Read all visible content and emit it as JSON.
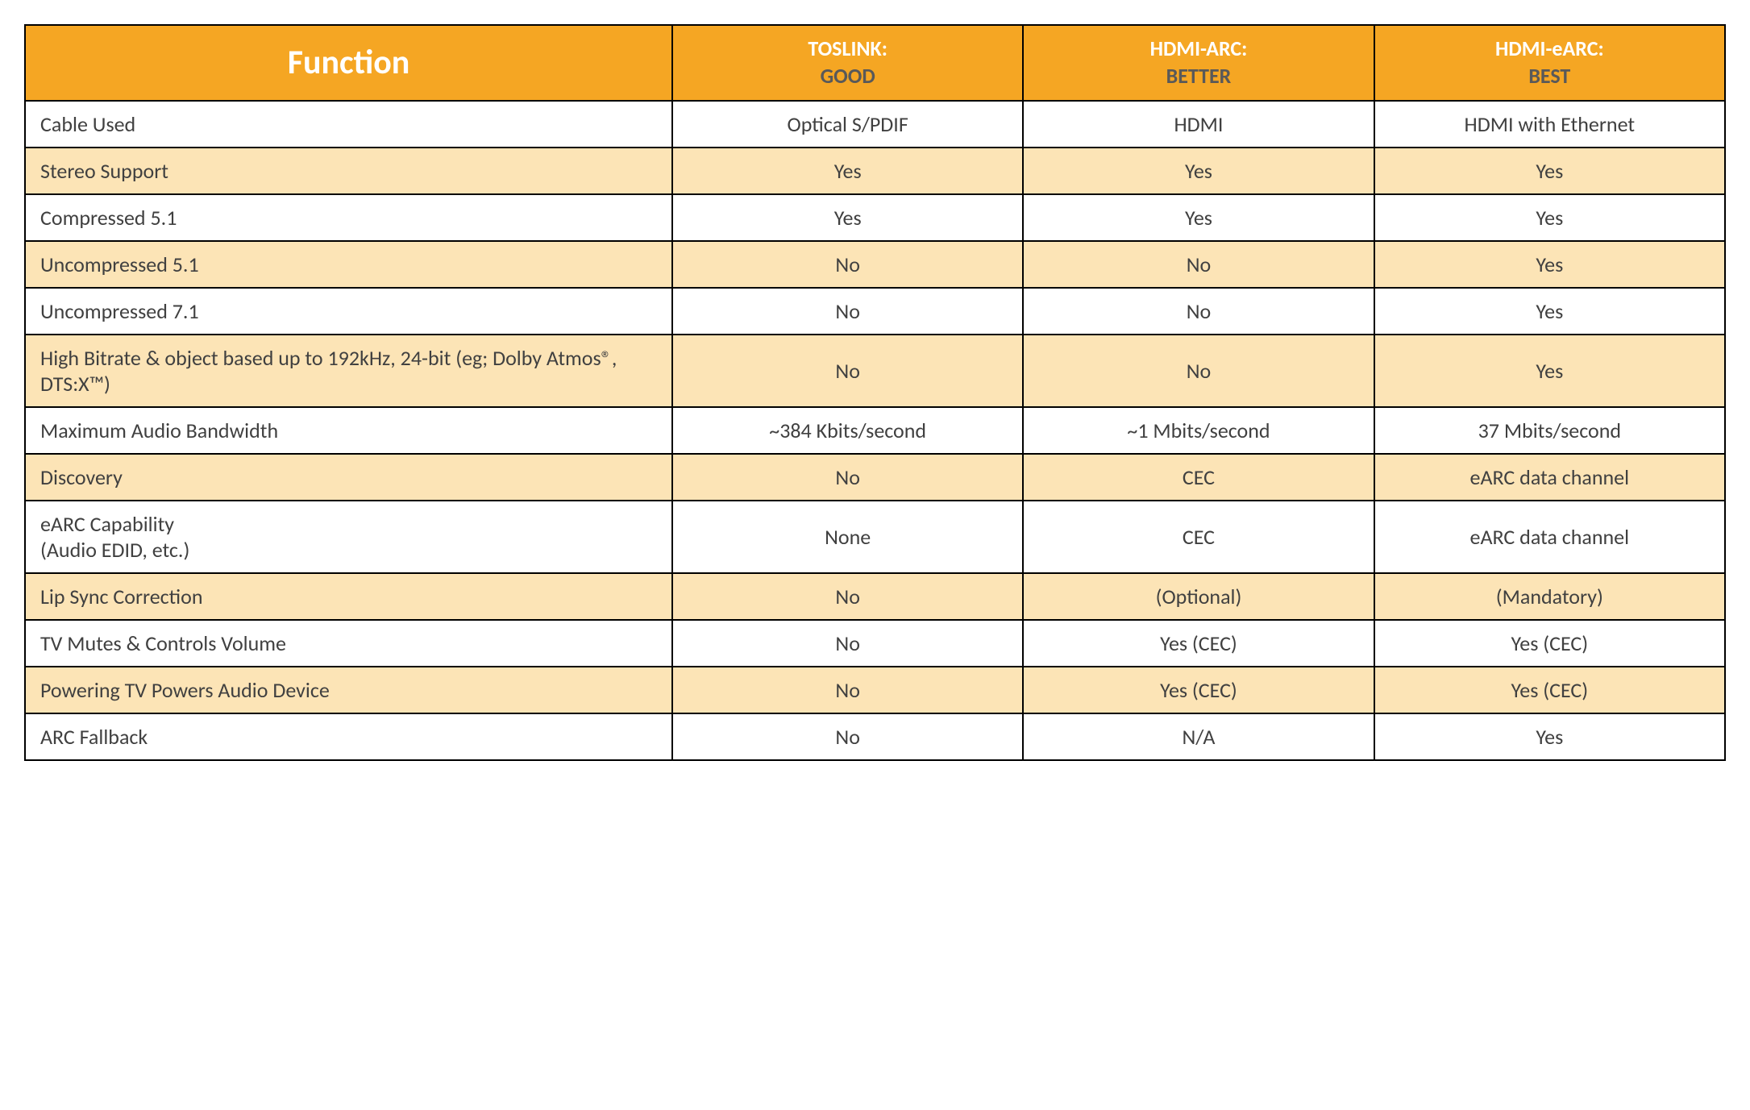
{
  "table": {
    "header": {
      "function_label": "Function",
      "cols": [
        {
          "line1": "TOSLINK:",
          "line2": "GOOD"
        },
        {
          "line1": "HDMI-ARC:",
          "line2": "BETTER"
        },
        {
          "line1": "HDMI-eARC:",
          "line2": "BEST"
        }
      ]
    },
    "rows": [
      {
        "fn": "Cable Used",
        "vals": [
          "Optical S/PDIF",
          "HDMI",
          "HDMI with Ethernet"
        ]
      },
      {
        "fn": "Stereo Support",
        "vals": [
          "Yes",
          "Yes",
          "Yes"
        ]
      },
      {
        "fn": "Compressed 5.1",
        "vals": [
          "Yes",
          "Yes",
          "Yes"
        ]
      },
      {
        "fn": "Uncompressed 5.1",
        "vals": [
          "No",
          "No",
          "Yes"
        ]
      },
      {
        "fn": "Uncompressed 7.1",
        "vals": [
          "No",
          "No",
          "Yes"
        ]
      },
      {
        "fn": "High Bitrate & object based up to 192kHz, 24-bit (eg; Dolby Atmos®, DTS:X™)",
        "vals": [
          "No",
          "No",
          "Yes"
        ]
      },
      {
        "fn": "Maximum Audio Bandwidth",
        "vals": [
          "~384 Kbits/second",
          "~1 Mbits/second",
          "37 Mbits/second"
        ]
      },
      {
        "fn": "Discovery",
        "vals": [
          "No",
          "CEC",
          "eARC data channel"
        ]
      },
      {
        "fn": "eARC Capability\n(Audio EDID, etc.)",
        "vals": [
          "None",
          "CEC",
          "eARC data channel"
        ]
      },
      {
        "fn": "Lip Sync Correction",
        "vals": [
          "No",
          "(Optional)",
          "(Mandatory)"
        ]
      },
      {
        "fn": "TV Mutes & Controls Volume",
        "vals": [
          "No",
          "Yes (CEC)",
          "Yes (CEC)"
        ]
      },
      {
        "fn": "Powering TV Powers Audio Device",
        "vals": [
          "No",
          "Yes (CEC)",
          "Yes (CEC)"
        ]
      },
      {
        "fn": "ARC Fallback",
        "vals": [
          "No",
          "N/A",
          "Yes"
        ]
      }
    ],
    "style": {
      "header_bg": "#f5a623",
      "header_text_white": "#ffffff",
      "header_text_dark": "#595959",
      "stripe_bg": "#fce4b6",
      "border_color": "#000000",
      "body_text": "#404040",
      "function_header_fontsize": 42,
      "col_header_fontsize": 26,
      "cell_fontsize": 26,
      "col_widths_pct": [
        38,
        20.6,
        20.6,
        20.6
      ]
    }
  }
}
